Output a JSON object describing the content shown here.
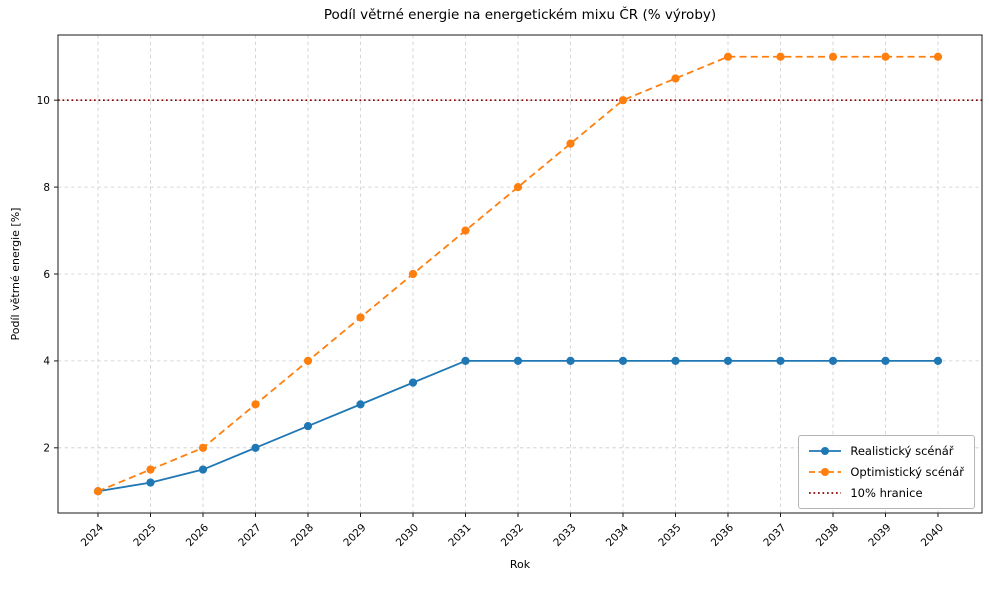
{
  "chart_data": {
    "type": "line",
    "title": "Podíl větrné energie na energetickém mixu ČR (% výroby)",
    "xlabel": "Rok",
    "ylabel": "Podíl větrné energie [%]",
    "x": [
      2024,
      2025,
      2026,
      2027,
      2028,
      2029,
      2030,
      2031,
      2032,
      2033,
      2034,
      2035,
      2036,
      2037,
      2038,
      2039,
      2040
    ],
    "yticks": [
      2,
      4,
      6,
      8,
      10
    ],
    "ylim": [
      0.5,
      11.5
    ],
    "grid": true,
    "grid_color": "#cccccc",
    "legend_position": "lower right",
    "spine_color": "#1a1a1a",
    "series": [
      {
        "name": "Realistický scénář",
        "color": "#1f77b4",
        "linestyle": "solid",
        "marker": "circle",
        "values": [
          1.0,
          1.2,
          1.5,
          2.0,
          2.5,
          3.0,
          3.5,
          4.0,
          4.0,
          4.0,
          4.0,
          4.0,
          4.0,
          4.0,
          4.0,
          4.0,
          4.0
        ]
      },
      {
        "name": "Optimistický scénář",
        "color": "#ff7f0e",
        "linestyle": "dashed",
        "marker": "circle",
        "values": [
          1.0,
          1.5,
          2.0,
          3.0,
          4.0,
          5.0,
          6.0,
          7.0,
          8.0,
          9.0,
          10.0,
          10.5,
          11.0,
          11.0,
          11.0,
          11.0,
          11.0
        ]
      }
    ],
    "threshold_line": {
      "name": "10% hranice",
      "value": 10,
      "color": "#8b0000",
      "linestyle": "dotted"
    }
  }
}
